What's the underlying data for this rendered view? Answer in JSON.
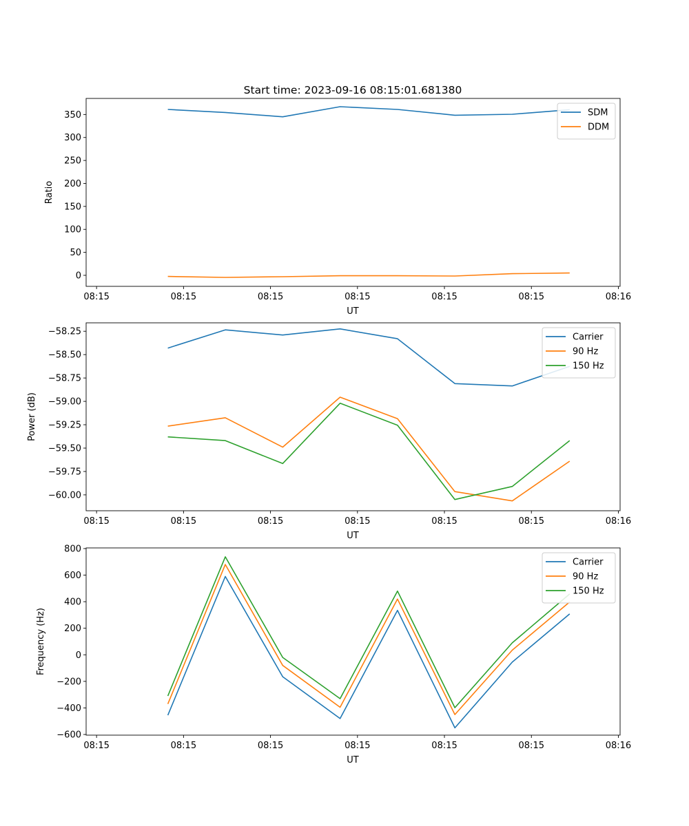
{
  "figure_title": "Start time: 2023-09-16 08:15:01.681380",
  "chart_data": [
    {
      "type": "line",
      "title": "Start time: 2023-09-16 08:15:01.681380",
      "xlabel": "UT",
      "ylabel": "Ratio",
      "x_tick_labels": [
        "08:15",
        "08:15",
        "08:15",
        "08:15",
        "08:15",
        "08:15",
        "08:15"
      ],
      "x_end_tick_label": "08:16",
      "x_samples_seconds": [
        8.2,
        14.8,
        21.4,
        28.0,
        34.6,
        41.2,
        47.8,
        54.4
      ],
      "x_ticks_seconds": [
        0,
        10,
        20,
        30,
        40,
        50,
        60
      ],
      "xlim": [
        -1.2,
        60.2
      ],
      "ylim": [
        -24,
        385
      ],
      "y_ticks": [
        0,
        50,
        100,
        150,
        200,
        250,
        300,
        350
      ],
      "y_tick_labels": [
        "0",
        "50",
        "100",
        "150",
        "200",
        "250",
        "300",
        "350"
      ],
      "legend_position": "top-right",
      "series": [
        {
          "name": "SDM",
          "color": "#1f77b4",
          "values": [
            361,
            354.5,
            345,
            367,
            361,
            348.5,
            350.5,
            360.5
          ]
        },
        {
          "name": "DDM",
          "color": "#ff7f0e",
          "values": [
            -2.5,
            -4.5,
            -3,
            -1,
            -1,
            -1.5,
            3.5,
            5
          ]
        }
      ]
    },
    {
      "type": "line",
      "xlabel": "UT",
      "ylabel": "Power (dB)",
      "x_tick_labels": [
        "08:15",
        "08:15",
        "08:15",
        "08:15",
        "08:15",
        "08:15",
        "08:15"
      ],
      "x_end_tick_label": "08:16",
      "x_samples_seconds": [
        8.2,
        14.8,
        21.4,
        28.0,
        34.6,
        41.2,
        47.8,
        54.4
      ],
      "x_ticks_seconds": [
        0,
        10,
        20,
        30,
        40,
        50,
        60
      ],
      "xlim": [
        -1.2,
        60.2
      ],
      "ylim": [
        -60.17,
        -58.16
      ],
      "y_ticks": [
        -60.0,
        -59.75,
        -59.5,
        -59.25,
        -59.0,
        -58.75,
        -58.5,
        -58.25
      ],
      "y_tick_labels": [
        "−60.00",
        "−59.75",
        "−59.50",
        "−59.25",
        "−59.00",
        "−58.75",
        "−58.50",
        "−58.25"
      ],
      "legend_position": "top-right",
      "series": [
        {
          "name": "Carrier",
          "color": "#1f77b4",
          "values": [
            -58.43,
            -58.235,
            -58.29,
            -58.225,
            -58.33,
            -58.81,
            -58.835,
            -58.625
          ]
        },
        {
          "name": "90 Hz",
          "color": "#ff7f0e",
          "values": [
            -59.265,
            -59.175,
            -59.49,
            -58.955,
            -59.185,
            -59.965,
            -60.065,
            -59.64
          ]
        },
        {
          "name": "150 Hz",
          "color": "#2ca02c",
          "values": [
            -59.38,
            -59.42,
            -59.665,
            -59.02,
            -59.255,
            -60.05,
            -59.91,
            -59.42
          ]
        }
      ]
    },
    {
      "type": "line",
      "xlabel": "UT",
      "ylabel": "Frequency (Hz)",
      "x_tick_labels": [
        "08:15",
        "08:15",
        "08:15",
        "08:15",
        "08:15",
        "08:15",
        "08:15"
      ],
      "x_end_tick_label": "08:16",
      "x_samples_seconds": [
        8.2,
        14.8,
        21.4,
        28.0,
        34.6,
        41.2,
        47.8,
        54.4
      ],
      "x_ticks_seconds": [
        0,
        10,
        20,
        30,
        40,
        50,
        60
      ],
      "xlim": [
        -1.2,
        60.2
      ],
      "ylim": [
        -605,
        805
      ],
      "y_ticks": [
        -600,
        -400,
        -200,
        0,
        200,
        400,
        600,
        800
      ],
      "y_tick_labels": [
        "−600",
        "−400",
        "−200",
        "0",
        "200",
        "400",
        "600",
        "800"
      ],
      "legend_position": "top-right",
      "series": [
        {
          "name": "Carrier",
          "color": "#1f77b4",
          "values": [
            -455,
            590,
            -165,
            -480,
            335,
            -550,
            -55,
            308
          ]
        },
        {
          "name": "90 Hz",
          "color": "#ff7f0e",
          "values": [
            -370,
            680,
            -80,
            -395,
            420,
            -450,
            35,
            398
          ]
        },
        {
          "name": "150 Hz",
          "color": "#2ca02c",
          "values": [
            -310,
            738,
            -20,
            -330,
            480,
            -398,
            90,
            458
          ]
        }
      ]
    }
  ]
}
